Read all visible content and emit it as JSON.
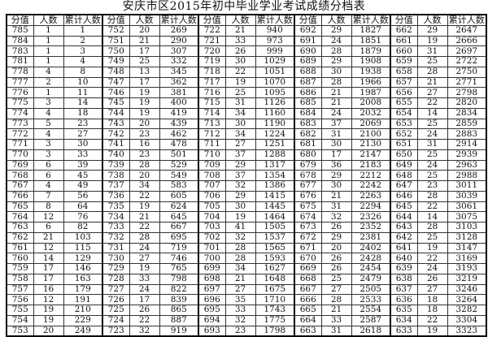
{
  "title": "安庆市区2015年初中毕业学业考试成绩分档表",
  "headers": [
    "分值",
    "人数",
    "累计人数"
  ],
  "groups": [
    [
      [
        785,
        1,
        1
      ],
      [
        784,
        1,
        2
      ],
      [
        783,
        1,
        3
      ],
      [
        781,
        1,
        4
      ],
      [
        778,
        4,
        8
      ],
      [
        777,
        2,
        10
      ],
      [
        776,
        1,
        11
      ],
      [
        775,
        3,
        14
      ],
      [
        774,
        4,
        18
      ],
      [
        773,
        5,
        23
      ],
      [
        772,
        4,
        27
      ],
      [
        771,
        3,
        30
      ],
      [
        770,
        3,
        33
      ],
      [
        769,
        6,
        39
      ],
      [
        768,
        6,
        45
      ],
      [
        767,
        4,
        49
      ],
      [
        766,
        7,
        56
      ],
      [
        765,
        8,
        64
      ],
      [
        764,
        12,
        76
      ],
      [
        763,
        6,
        82
      ],
      [
        762,
        21,
        103
      ],
      [
        761,
        12,
        115
      ],
      [
        760,
        14,
        129
      ],
      [
        759,
        17,
        146
      ],
      [
        758,
        17,
        163
      ],
      [
        757,
        16,
        179
      ],
      [
        756,
        12,
        191
      ],
      [
        755,
        19,
        210
      ],
      [
        754,
        19,
        229
      ],
      [
        753,
        20,
        249
      ]
    ],
    [
      [
        752,
        20,
        269
      ],
      [
        751,
        21,
        290
      ],
      [
        750,
        17,
        307
      ],
      [
        749,
        25,
        332
      ],
      [
        748,
        13,
        345
      ],
      [
        747,
        17,
        362
      ],
      [
        746,
        19,
        381
      ],
      [
        745,
        19,
        400
      ],
      [
        744,
        19,
        419
      ],
      [
        743,
        20,
        439
      ],
      [
        742,
        23,
        462
      ],
      [
        741,
        16,
        478
      ],
      [
        740,
        23,
        501
      ],
      [
        739,
        28,
        529
      ],
      [
        738,
        20,
        549
      ],
      [
        737,
        34,
        583
      ],
      [
        736,
        22,
        605
      ],
      [
        735,
        19,
        624
      ],
      [
        734,
        21,
        645
      ],
      [
        733,
        22,
        667
      ],
      [
        732,
        28,
        695
      ],
      [
        731,
        24,
        719
      ],
      [
        730,
        27,
        746
      ],
      [
        729,
        19,
        765
      ],
      [
        728,
        33,
        798
      ],
      [
        727,
        24,
        822
      ],
      [
        726,
        17,
        839
      ],
      [
        725,
        26,
        865
      ],
      [
        724,
        22,
        887
      ],
      [
        723,
        32,
        919
      ]
    ],
    [
      [
        722,
        21,
        940
      ],
      [
        721,
        33,
        973
      ],
      [
        720,
        26,
        999
      ],
      [
        719,
        30,
        1029
      ],
      [
        718,
        22,
        1051
      ],
      [
        717,
        19,
        1070
      ],
      [
        716,
        25,
        1095
      ],
      [
        715,
        31,
        1126
      ],
      [
        714,
        34,
        1160
      ],
      [
        713,
        30,
        1190
      ],
      [
        712,
        34,
        1224
      ],
      [
        711,
        27,
        1251
      ],
      [
        710,
        37,
        1288
      ],
      [
        709,
        29,
        1317
      ],
      [
        708,
        37,
        1354
      ],
      [
        707,
        32,
        1386
      ],
      [
        706,
        29,
        1415
      ],
      [
        705,
        30,
        1445
      ],
      [
        704,
        19,
        1464
      ],
      [
        703,
        41,
        1505
      ],
      [
        702,
        32,
        1537
      ],
      [
        701,
        28,
        1565
      ],
      [
        700,
        28,
        1593
      ],
      [
        699,
        34,
        1627
      ],
      [
        698,
        21,
        1648
      ],
      [
        697,
        27,
        1675
      ],
      [
        696,
        35,
        1710
      ],
      [
        695,
        33,
        1743
      ],
      [
        694,
        32,
        1775
      ],
      [
        693,
        23,
        1798
      ]
    ],
    [
      [
        692,
        29,
        1827
      ],
      [
        691,
        24,
        1851
      ],
      [
        690,
        28,
        1879
      ],
      [
        689,
        29,
        1908
      ],
      [
        688,
        30,
        1938
      ],
      [
        687,
        28,
        1966
      ],
      [
        686,
        21,
        1987
      ],
      [
        685,
        21,
        2008
      ],
      [
        684,
        24,
        2032
      ],
      [
        683,
        37,
        2069
      ],
      [
        682,
        31,
        2100
      ],
      [
        681,
        30,
        2130
      ],
      [
        680,
        17,
        2147
      ],
      [
        679,
        36,
        2183
      ],
      [
        678,
        29,
        2212
      ],
      [
        677,
        30,
        2242
      ],
      [
        676,
        21,
        2263
      ],
      [
        675,
        31,
        2294
      ],
      [
        674,
        32,
        2326
      ],
      [
        673,
        26,
        2352
      ],
      [
        672,
        29,
        2381
      ],
      [
        671,
        20,
        2402
      ],
      [
        670,
        26,
        2428
      ],
      [
        669,
        26,
        2454
      ],
      [
        668,
        25,
        2479
      ],
      [
        667,
        27,
        2505
      ],
      [
        666,
        28,
        2533
      ],
      [
        665,
        21,
        2554
      ],
      [
        664,
        33,
        2587
      ],
      [
        663,
        31,
        2618
      ]
    ],
    [
      [
        662,
        29,
        2647
      ],
      [
        661,
        19,
        2666
      ],
      [
        660,
        31,
        2697
      ],
      [
        659,
        25,
        2722
      ],
      [
        658,
        28,
        2750
      ],
      [
        657,
        21,
        2771
      ],
      [
        656,
        27,
        2798
      ],
      [
        655,
        22,
        2820
      ],
      [
        654,
        14,
        2834
      ],
      [
        653,
        25,
        2859
      ],
      [
        652,
        24,
        2883
      ],
      [
        651,
        31,
        2914
      ],
      [
        650,
        25,
        2939
      ],
      [
        649,
        24,
        2963
      ],
      [
        648,
        25,
        2988
      ],
      [
        647,
        23,
        3011
      ],
      [
        646,
        28,
        3039
      ],
      [
        645,
        22,
        3061
      ],
      [
        644,
        14,
        3075
      ],
      [
        643,
        28,
        3103
      ],
      [
        642,
        25,
        3128
      ],
      [
        641,
        19,
        3147
      ],
      [
        640,
        22,
        3169
      ],
      [
        639,
        24,
        3193
      ],
      [
        638,
        26,
        3219
      ],
      [
        637,
        27,
        3246
      ],
      [
        636,
        18,
        3264
      ],
      [
        635,
        18,
        3282
      ],
      [
        634,
        22,
        3304
      ],
      [
        633,
        19,
        3323
      ]
    ]
  ]
}
